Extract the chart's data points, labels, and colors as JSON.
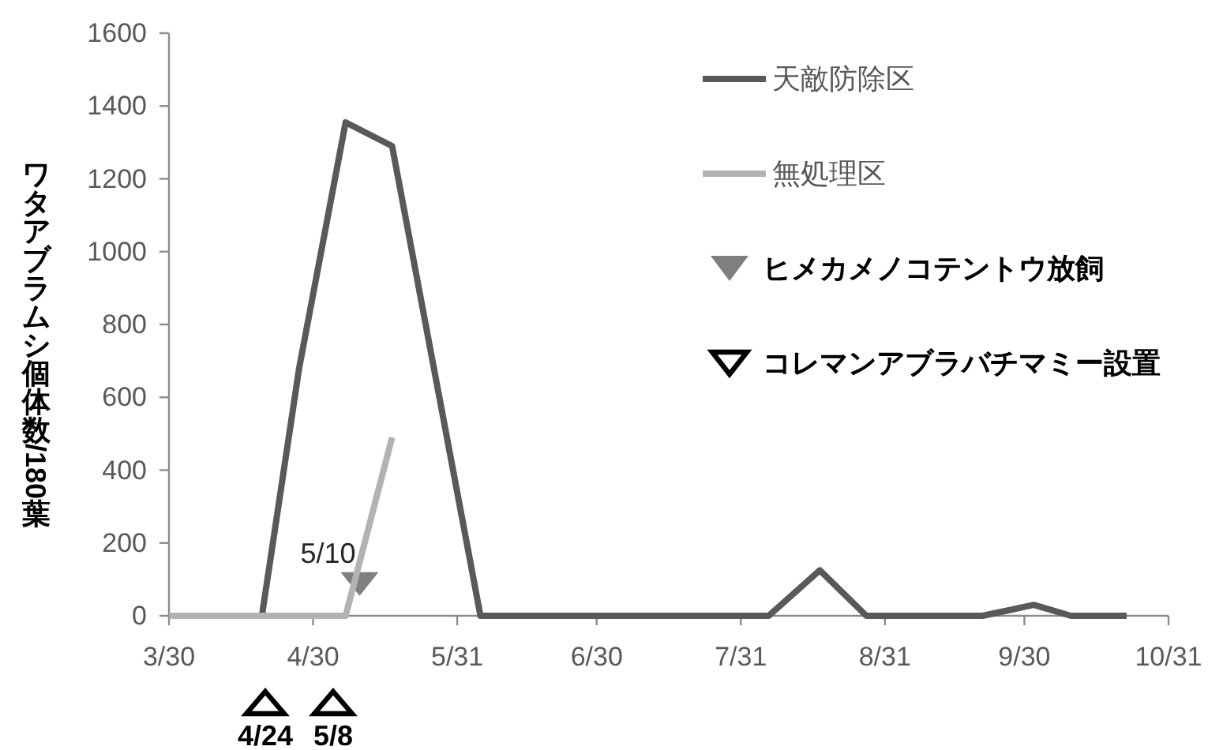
{
  "chart_data": {
    "type": "line",
    "ylabel": "ワタアブラムシ個体数/180葉",
    "series": [
      {
        "name": "天敵防除区",
        "color": "#595959",
        "x": [
          "--04-19",
          "--04-27",
          "--05-07",
          "--05-17",
          "--06-05",
          "--08-06",
          "--08-17",
          "--08-27",
          "--09-21",
          "--10-02",
          "--10-10",
          "--10-22"
        ],
        "values": [
          0,
          680,
          1355,
          1290,
          0,
          0,
          125,
          0,
          0,
          30,
          0,
          0
        ]
      },
      {
        "name": "無処理区",
        "color": "#b2b2b2",
        "x": [
          "--03-30",
          "--05-07",
          "--05-17"
        ],
        "values": [
          0,
          0,
          490
        ]
      }
    ],
    "xlim": [
      "--03-30",
      "--10-31"
    ],
    "xticks": [
      {
        "value": "--03-30",
        "label": "3/30"
      },
      {
        "value": "--04-30",
        "label": "4/30"
      },
      {
        "value": "--05-31",
        "label": "5/31"
      },
      {
        "value": "--06-30",
        "label": "6/30"
      },
      {
        "value": "--07-31",
        "label": "7/31"
      },
      {
        "value": "--08-31",
        "label": "8/31"
      },
      {
        "value": "--09-30",
        "label": "9/30"
      },
      {
        "value": "--10-31",
        "label": "10/31"
      }
    ],
    "ylim": [
      0,
      1600
    ],
    "yticks": [
      0,
      200,
      400,
      600,
      800,
      1000,
      1200,
      1400,
      1600
    ],
    "legend": "top right",
    "annotations": [
      "ヒメカメノコテントウ放飼",
      "コレマンアブラバチマミー設置",
      "4/24",
      "5/8",
      {
        "text": "5/10",
        "x": "--05-10",
        "y": 55
      }
    ]
  }
}
